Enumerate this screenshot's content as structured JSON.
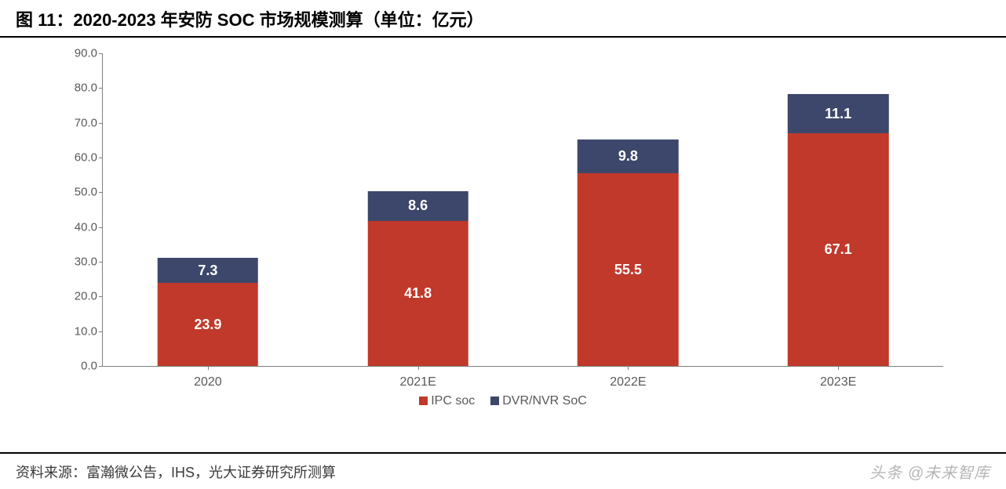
{
  "title": "图 11：2020-2023 年安防 SOC 市场规模测算（单位：亿元）",
  "source": "资料来源：富瀚微公告，IHS，光大证券研究所测算",
  "watermark": "头条 @未来智库",
  "chart": {
    "type": "stacked-bar",
    "ylim": [
      0,
      90
    ],
    "ytick_step": 10,
    "ytick_decimals": 1,
    "categories": [
      "2020",
      "2021E",
      "2022E",
      "2023E"
    ],
    "series": [
      {
        "name": "IPC soc",
        "color": "#c0392b",
        "values": [
          23.9,
          41.8,
          55.5,
          67.1
        ],
        "label_color": "#ffffff",
        "label_fontsize": 18
      },
      {
        "name": "DVR/NVR SoC",
        "color": "#3d476b",
        "values": [
          7.3,
          8.6,
          9.8,
          11.1
        ],
        "label_color": "#ffffff",
        "label_fontsize": 18
      }
    ],
    "bar_width_pct": 12,
    "axis_color": "#808080",
    "tick_label_color": "#595959",
    "tick_fontsize": 15,
    "background_color": "#ffffff"
  }
}
